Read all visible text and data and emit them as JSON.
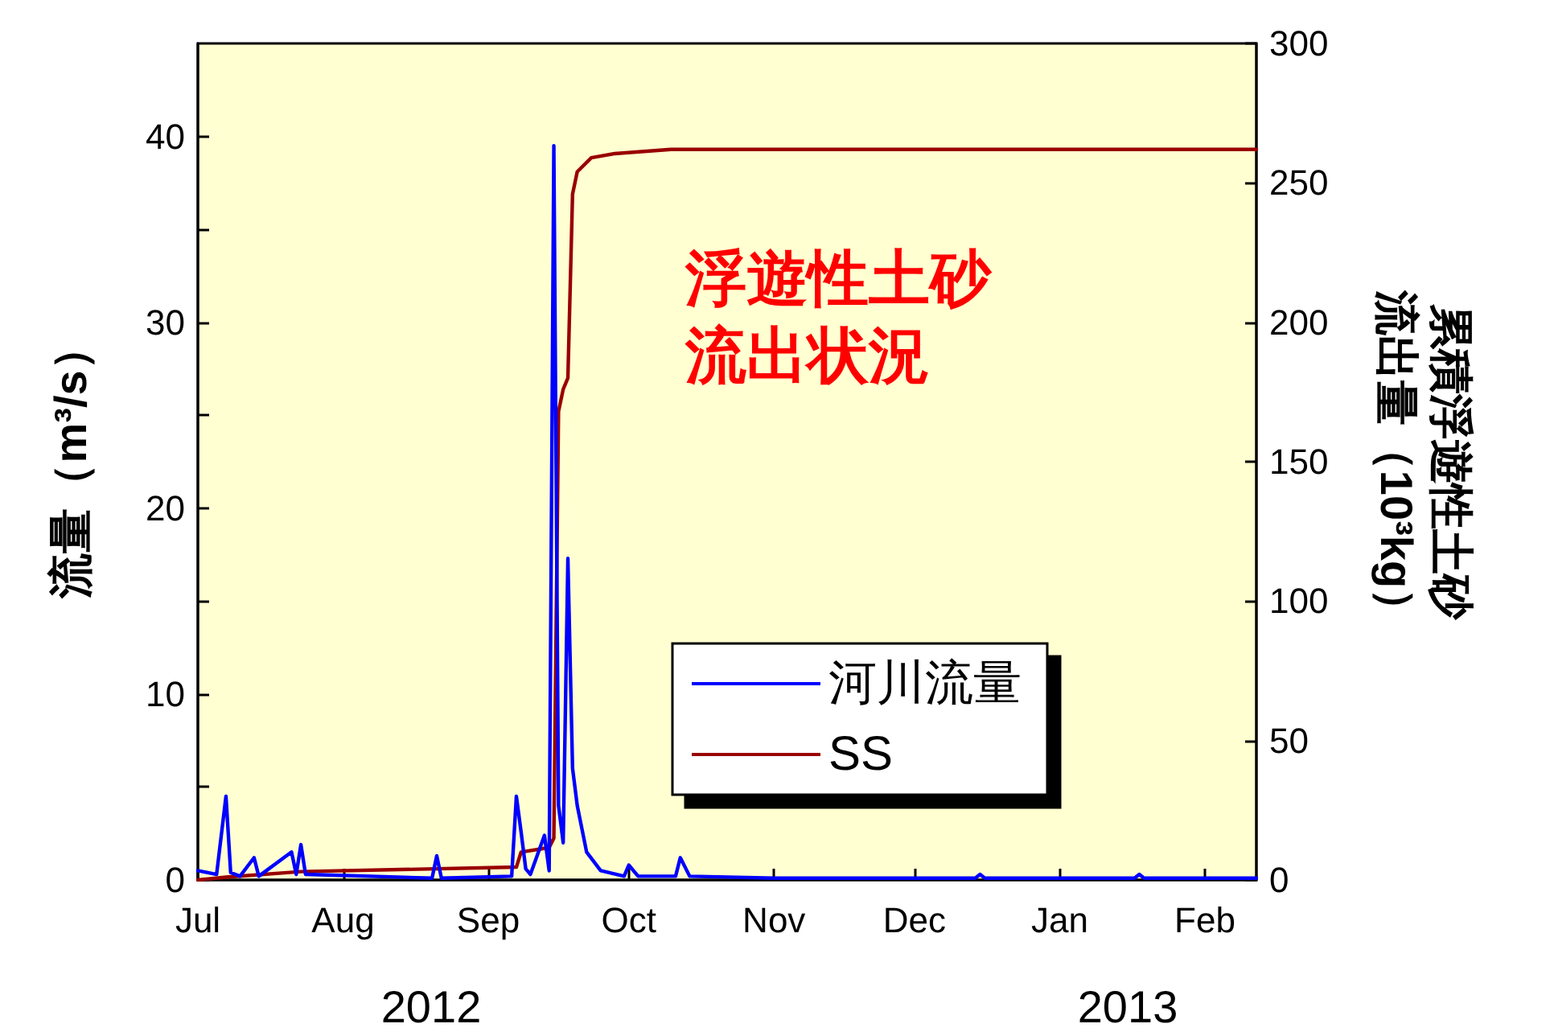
{
  "chart_data": {
    "type": "line",
    "ylabel": "流量（m³/s）",
    "y2label": "累積浮遊性土砂流出量（10³kg）",
    "annotations": [
      "浮遊性土砂流出状況",
      "2012",
      "2013"
    ],
    "xlim": [
      "2012-07-01",
      "2013-02-12"
    ],
    "xticks": [
      {
        "value": "2012-07-01",
        "label": "Jul"
      },
      {
        "value": "2012-08-01",
        "label": "Aug"
      },
      {
        "value": "2012-09-01",
        "label": "Sep"
      },
      {
        "value": "2012-10-01",
        "label": "Oct"
      },
      {
        "value": "2012-11-01",
        "label": "Nov"
      },
      {
        "value": "2012-12-01",
        "label": "Dec"
      },
      {
        "value": "2013-01-01",
        "label": "Jan"
      },
      {
        "value": "2013-02-01",
        "label": "Feb"
      }
    ],
    "ylim": [
      0,
      45
    ],
    "yticks": [
      0,
      {
        "value": 5,
        "label": null
      },
      10,
      {
        "value": 15,
        "label": null
      },
      20,
      {
        "value": 25,
        "label": null
      },
      30,
      {
        "value": 35,
        "label": null
      },
      40
    ],
    "y2lim": [
      0,
      300
    ],
    "y2ticks": [
      0,
      50,
      100,
      150,
      200,
      250,
      300
    ],
    "legend": "right",
    "grid": false,
    "marker": "none",
    "line_style": "solid",
    "series": [
      {
        "name": "河川流量",
        "color": "#0000ff",
        "x": [
          "2012-07-01",
          "2012-07-05",
          "2012-07-07",
          "2012-07-08",
          "2012-07-10",
          "2012-07-13",
          "2012-07-14",
          "2012-07-21",
          "2012-07-22",
          "2012-07-23",
          "2012-07-24",
          "2012-08-20",
          "2012-08-21",
          "2012-08-22",
          "2012-09-06",
          "2012-09-07",
          "2012-09-08",
          "2012-09-09",
          "2012-09-10",
          "2012-09-13",
          "2012-09-14",
          "2012-09-15",
          "2012-09-16",
          "2012-09-17",
          "2012-09-18",
          "2012-09-19",
          "2012-09-20",
          "2012-09-22",
          "2012-09-25",
          "2012-09-30",
          "2012-10-01",
          "2012-10-03",
          "2012-10-11",
          "2012-10-12",
          "2012-10-14",
          "2012-11-01",
          "2012-12-14",
          "2012-12-15",
          "2012-12-16",
          "2013-01-17",
          "2013-01-18",
          "2013-01-19",
          "2013-02-12"
        ],
        "values": [
          0.5,
          0.3,
          4.5,
          0.4,
          0.2,
          1.2,
          0.2,
          1.5,
          0.3,
          1.9,
          0.3,
          0.1,
          1.3,
          0.1,
          0.2,
          4.5,
          2.6,
          0.6,
          0.3,
          2.4,
          0.5,
          39.5,
          4,
          2,
          17.3,
          6,
          4,
          1.5,
          0.5,
          0.2,
          0.8,
          0.2,
          0.2,
          1.2,
          0.2,
          0.1,
          0.1,
          0.3,
          0.1,
          0.1,
          0.3,
          0.1,
          0.1
        ]
      },
      {
        "name": "SS",
        "color": "#990000",
        "axis": "y2",
        "x": [
          "2012-07-01",
          "2012-07-07",
          "2012-07-23",
          "2012-09-07",
          "2012-09-08",
          "2012-09-14",
          "2012-09-15",
          "2012-09-16",
          "2012-09-17",
          "2012-09-18",
          "2012-09-19",
          "2012-09-20",
          "2012-09-23",
          "2012-09-28",
          "2012-10-10",
          "2013-02-12"
        ],
        "values": [
          0,
          1,
          3,
          4.6,
          10,
          11.6,
          15,
          168,
          176,
          180,
          246,
          254,
          259,
          260.5,
          262,
          262
        ]
      }
    ]
  }
}
